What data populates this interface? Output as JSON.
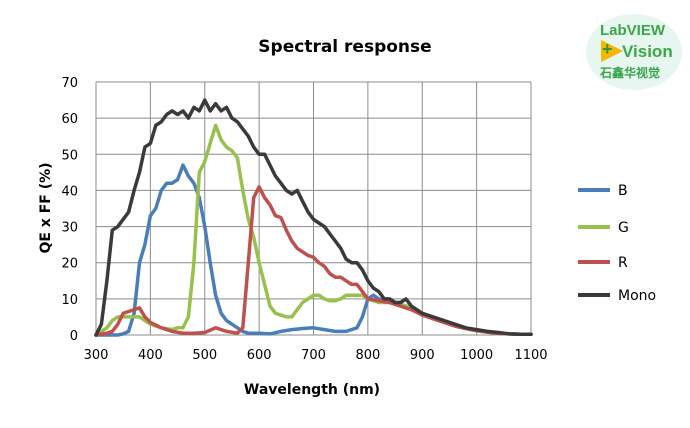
{
  "chart_data": {
    "type": "line",
    "title": "Spectral response",
    "xlabel": "Wavelength (nm)",
    "ylabel": "QE x FF (%)",
    "xlim": [
      300,
      1100
    ],
    "ylim": [
      0,
      70
    ],
    "xticks": [
      300,
      400,
      500,
      600,
      700,
      800,
      900,
      1000,
      1100
    ],
    "yticks": [
      0,
      10,
      20,
      30,
      40,
      50,
      60,
      70
    ],
    "grid": true,
    "legend_position": "right",
    "series": [
      {
        "name": "B",
        "color": "#4a7ebb",
        "x": [
          300,
          340,
          350,
          360,
          370,
          380,
          390,
          400,
          410,
          420,
          430,
          440,
          450,
          460,
          470,
          480,
          490,
          500,
          510,
          520,
          530,
          540,
          550,
          560,
          570,
          580,
          600,
          620,
          640,
          660,
          680,
          700,
          720,
          740,
          760,
          780,
          790,
          800,
          810,
          820,
          840,
          860,
          880,
          900,
          920,
          940,
          960,
          980,
          1000,
          1020,
          1040,
          1060,
          1080,
          1100
        ],
        "y": [
          0,
          0,
          0.3,
          1,
          6,
          20,
          25,
          33,
          35,
          40,
          42,
          42,
          43,
          47,
          44,
          42,
          38,
          30,
          20,
          11,
          6,
          4,
          3,
          2,
          1,
          0.5,
          0.5,
          0.3,
          1,
          1.5,
          1.8,
          2,
          1.5,
          1,
          1,
          2,
          5,
          10,
          11,
          10,
          9,
          8.5,
          7.5,
          6,
          4.5,
          3.5,
          2.5,
          1.8,
          1.2,
          0.8,
          0.5,
          0.3,
          0.2,
          0.2
        ]
      },
      {
        "name": "G",
        "color": "#98c04c",
        "x": [
          300,
          320,
          330,
          340,
          350,
          360,
          370,
          380,
          390,
          400,
          420,
          440,
          450,
          460,
          470,
          480,
          490,
          500,
          510,
          520,
          530,
          540,
          550,
          560,
          570,
          580,
          590,
          600,
          610,
          620,
          630,
          640,
          650,
          660,
          670,
          680,
          690,
          700,
          710,
          720,
          730,
          740,
          750,
          760,
          770,
          780,
          790,
          800,
          820,
          840,
          860,
          880,
          900,
          920,
          940,
          960,
          980,
          1000,
          1020,
          1040,
          1060,
          1080,
          1100
        ],
        "y": [
          0,
          2,
          4,
          5,
          5,
          5,
          5,
          5,
          4,
          3,
          2,
          1.5,
          2,
          2,
          5,
          20,
          45,
          48,
          53,
          58,
          54,
          52,
          51,
          49,
          40,
          32,
          27,
          20,
          14,
          8,
          6,
          5.5,
          5,
          5,
          7,
          9,
          10,
          11,
          11,
          10,
          9.5,
          9.5,
          10,
          11,
          11,
          11,
          11,
          10,
          9,
          9,
          8.5,
          7.5,
          6,
          4.5,
          3.5,
          2.5,
          1.8,
          1.2,
          0.8,
          0.5,
          0.3,
          0.2,
          0.2
        ]
      },
      {
        "name": "R",
        "color": "#c0504d",
        "x": [
          300,
          320,
          330,
          340,
          350,
          360,
          370,
          380,
          390,
          400,
          420,
          440,
          460,
          480,
          500,
          520,
          540,
          560,
          570,
          580,
          590,
          600,
          610,
          620,
          630,
          640,
          650,
          660,
          670,
          680,
          690,
          700,
          710,
          720,
          730,
          740,
          750,
          760,
          770,
          780,
          790,
          800,
          820,
          840,
          860,
          880,
          900,
          920,
          940,
          960,
          980,
          1000,
          1020,
          1040,
          1060,
          1080,
          1100
        ],
        "y": [
          0,
          0.5,
          1,
          3,
          6,
          6.5,
          7,
          7.5,
          5,
          3.5,
          2,
          1,
          0.5,
          0.5,
          0.7,
          2,
          1,
          0.5,
          2,
          20,
          38,
          41,
          38,
          36,
          33,
          32.5,
          29,
          26,
          24,
          23,
          22,
          21.5,
          20,
          19,
          17,
          16,
          16,
          15,
          14,
          14,
          12,
          10,
          9.5,
          9,
          8,
          7,
          5.5,
          4.5,
          3.5,
          2.5,
          1.8,
          1.2,
          0.8,
          0.5,
          0.3,
          0.2,
          0.2
        ]
      },
      {
        "name": "Mono",
        "color": "#3a3a3a",
        "x": [
          300,
          310,
          320,
          330,
          340,
          350,
          360,
          370,
          380,
          390,
          400,
          410,
          420,
          430,
          440,
          450,
          460,
          470,
          480,
          490,
          500,
          510,
          520,
          530,
          540,
          550,
          560,
          570,
          580,
          590,
          600,
          610,
          620,
          630,
          640,
          650,
          660,
          670,
          680,
          690,
          700,
          710,
          720,
          730,
          740,
          750,
          760,
          770,
          780,
          790,
          800,
          810,
          820,
          830,
          840,
          850,
          860,
          870,
          880,
          890,
          900,
          920,
          940,
          960,
          980,
          1000,
          1020,
          1040,
          1060,
          1080,
          1100
        ],
        "y": [
          0,
          3,
          15,
          29,
          30,
          32,
          34,
          40,
          45,
          52,
          53,
          58,
          59,
          61,
          62,
          61,
          62,
          60,
          63,
          62,
          65,
          62,
          64,
          62,
          63,
          60,
          59,
          57,
          55,
          52,
          50,
          50,
          47,
          44,
          42,
          40,
          39,
          40,
          37,
          34,
          32,
          31,
          30,
          28,
          26,
          24,
          21,
          20,
          20,
          18,
          15,
          13,
          12,
          10,
          10,
          9,
          9,
          10,
          8,
          7,
          6,
          5,
          4,
          3,
          2,
          1.5,
          1,
          0.7,
          0.3,
          0.2,
          0.2
        ]
      }
    ]
  },
  "logo": {
    "line1": "LabVIEW",
    "line2": "Vision",
    "line3": "石鑫华视觉",
    "plus": "+"
  }
}
